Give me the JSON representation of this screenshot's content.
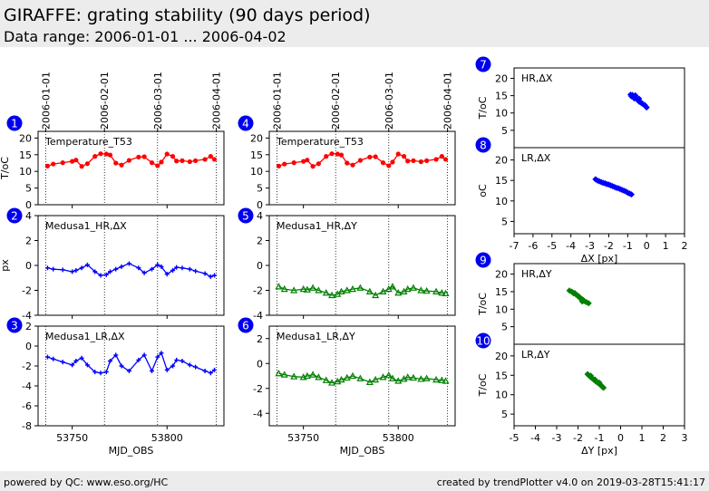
{
  "header": {
    "title": "GIRAFFE: grating stability (90 days period)",
    "subtitle": "Data range: 2006-01-01 ... 2006-04-02"
  },
  "footer": {
    "left": "powered by QC: www.eso.org/HC",
    "right": "created by trendPlotter v4.0 on 2019-03-28T15:41:17"
  },
  "colors": {
    "red": "#ff0000",
    "blue": "#0000ff",
    "green": "#008000",
    "badge": "#0000ee"
  },
  "chart_data": [
    {
      "id": 1,
      "type": "line",
      "label": "Temperature_T53",
      "ylabel": "T/oC",
      "ylim": [
        0,
        22
      ],
      "yticks": [
        0,
        5,
        10,
        15,
        20
      ],
      "color": "#ff0000",
      "marker": "circle",
      "x": [
        53737,
        53740,
        53745,
        53750,
        53752,
        53755,
        53758,
        53762,
        53765,
        53768,
        53770,
        53773,
        53776,
        53780,
        53785,
        53788,
        53792,
        53795,
        53797,
        53800,
        53803,
        53805,
        53808,
        53812,
        53815,
        53820,
        53823,
        53825
      ],
      "y": [
        11.6,
        12.2,
        12.6,
        13,
        13.4,
        11.5,
        12.3,
        14.5,
        15.3,
        15.2,
        14.9,
        12.5,
        11.9,
        13.3,
        14.3,
        14.4,
        12.6,
        11.7,
        12.8,
        15.2,
        14.5,
        13.1,
        13.2,
        12.9,
        13.2,
        13.6,
        14.5,
        13.6
      ]
    },
    {
      "id": 2,
      "type": "line",
      "label": "Medusa1_HR,ΔX",
      "ylabel": "px",
      "ylim": [
        -4,
        4
      ],
      "yticks": [
        -4,
        -2,
        0,
        2,
        4
      ],
      "color": "#0000ff",
      "marker": "plus",
      "x": [
        53737,
        53740,
        53745,
        53750,
        53752,
        53755,
        53758,
        53762,
        53765,
        53768,
        53770,
        53773,
        53776,
        53780,
        53785,
        53788,
        53792,
        53795,
        53797,
        53800,
        53803,
        53805,
        53808,
        53812,
        53815,
        53820,
        53823,
        53825
      ],
      "y": [
        -0.2,
        -0.3,
        -0.35,
        -0.5,
        -0.4,
        -0.2,
        0.05,
        -0.5,
        -0.8,
        -0.75,
        -0.5,
        -0.3,
        -0.1,
        0.15,
        -0.2,
        -0.6,
        -0.3,
        0.05,
        -0.1,
        -0.7,
        -0.4,
        -0.15,
        -0.2,
        -0.3,
        -0.45,
        -0.65,
        -0.9,
        -0.8
      ]
    },
    {
      "id": 3,
      "type": "line",
      "label": "Medusa1_LR,ΔX",
      "xlabel": "MJD_OBS",
      "ylim": [
        -8,
        2
      ],
      "yticks": [
        -8,
        -6,
        -4,
        -2,
        0,
        2
      ],
      "xticks": [
        53750,
        53800
      ],
      "color": "#0000ff",
      "marker": "plus",
      "x": [
        53737,
        53740,
        53745,
        53750,
        53752,
        53755,
        53758,
        53762,
        53765,
        53768,
        53770,
        53773,
        53776,
        53780,
        53785,
        53788,
        53792,
        53795,
        53797,
        53800,
        53803,
        53805,
        53808,
        53812,
        53815,
        53820,
        53823,
        53825
      ],
      "y": [
        -1.1,
        -1.3,
        -1.6,
        -1.9,
        -1.5,
        -1.2,
        -1.9,
        -2.6,
        -2.7,
        -2.6,
        -1.5,
        -0.9,
        -2,
        -2.5,
        -1.4,
        -0.9,
        -2.5,
        -1.1,
        -0.7,
        -2.4,
        -2,
        -1.4,
        -1.5,
        -1.9,
        -2.1,
        -2.5,
        -2.7,
        -2.4
      ]
    },
    {
      "id": 4,
      "type": "line",
      "label": "Temperature_T53",
      "ylim": [
        0,
        22
      ],
      "yticks": [
        0,
        5,
        10,
        15,
        20
      ],
      "color": "#ff0000",
      "marker": "circle",
      "x": [
        53737,
        53740,
        53745,
        53750,
        53752,
        53755,
        53758,
        53762,
        53765,
        53768,
        53770,
        53773,
        53776,
        53780,
        53785,
        53788,
        53792,
        53795,
        53797,
        53800,
        53803,
        53805,
        53808,
        53812,
        53815,
        53820,
        53823,
        53825
      ],
      "y": [
        11.6,
        12.2,
        12.6,
        13,
        13.4,
        11.5,
        12.3,
        14.5,
        15.3,
        15.2,
        14.9,
        12.5,
        11.9,
        13.3,
        14.3,
        14.4,
        12.6,
        11.7,
        12.8,
        15.2,
        14.5,
        13.1,
        13.2,
        12.9,
        13.2,
        13.6,
        14.5,
        13.6
      ]
    },
    {
      "id": 5,
      "type": "line",
      "label": "Medusa1_HR,ΔY",
      "ylim": [
        -4,
        4
      ],
      "yticks": [
        -4,
        -2,
        0,
        2,
        4
      ],
      "color": "#008000",
      "marker": "triangle",
      "x": [
        53737,
        53740,
        53745,
        53750,
        53752,
        53755,
        53758,
        53762,
        53765,
        53768,
        53770,
        53773,
        53776,
        53780,
        53785,
        53788,
        53792,
        53795,
        53797,
        53800,
        53803,
        53805,
        53808,
        53812,
        53815,
        53820,
        53823,
        53825
      ],
      "y": [
        -1.7,
        -1.9,
        -2,
        -1.9,
        -1.95,
        -1.8,
        -2,
        -2.2,
        -2.4,
        -2.3,
        -2.1,
        -2,
        -1.9,
        -1.8,
        -2.1,
        -2.4,
        -2.1,
        -1.9,
        -1.7,
        -2.2,
        -2.1,
        -1.9,
        -1.8,
        -2,
        -2.05,
        -2.1,
        -2.2,
        -2.25
      ]
    },
    {
      "id": 6,
      "type": "line",
      "label": "Medusa1_LR,ΔY",
      "xlabel": "MJD_OBS",
      "ylim": [
        -5,
        3
      ],
      "yticks": [
        -4,
        -2,
        0,
        2
      ],
      "xticks": [
        53750,
        53800
      ],
      "color": "#008000",
      "marker": "triangle",
      "x": [
        53737,
        53740,
        53745,
        53750,
        53752,
        53755,
        53758,
        53762,
        53765,
        53768,
        53770,
        53773,
        53776,
        53780,
        53785,
        53788,
        53792,
        53795,
        53797,
        53800,
        53803,
        53805,
        53808,
        53812,
        53815,
        53820,
        53823,
        53825
      ],
      "y": [
        -0.8,
        -0.9,
        -1.05,
        -1.1,
        -1,
        -0.9,
        -1.1,
        -1.35,
        -1.55,
        -1.45,
        -1.3,
        -1.15,
        -1,
        -1.2,
        -1.5,
        -1.3,
        -1.1,
        -0.95,
        -1.2,
        -1.4,
        -1.25,
        -1.1,
        -1.15,
        -1.25,
        -1.2,
        -1.3,
        -1.35,
        -1.4
      ]
    },
    {
      "id": 7,
      "type": "scatter",
      "label": "HR,ΔX",
      "ylabel": "T/oC",
      "ylim": [
        0,
        23
      ],
      "yticks": [
        5,
        10,
        15,
        20
      ],
      "color": "#0000ff",
      "marker": "diamond",
      "x": [
        -0.8,
        -0.75,
        -0.7,
        -0.65,
        -0.6,
        -0.55,
        -0.5,
        -0.45,
        -0.4,
        -0.35,
        -0.3,
        -0.25,
        -0.2,
        -0.1,
        -0.05,
        0,
        -0.85,
        -0.6,
        -0.4
      ],
      "y": [
        14.8,
        15.2,
        14.5,
        14.2,
        15.1,
        14.4,
        13.9,
        13.6,
        13.3,
        13.2,
        13,
        12.8,
        12.6,
        12.3,
        11.9,
        11.6,
        15.3,
        15,
        14.1
      ]
    },
    {
      "id": 8,
      "type": "scatter",
      "label": "LR,ΔX",
      "ylabel": "oC",
      "xlabel": "ΔX [px]",
      "ylim": [
        2,
        23
      ],
      "yticks": [
        5,
        10,
        15,
        20
      ],
      "xlim": [
        -7,
        2
      ],
      "xticks": [
        -7,
        -6,
        -5,
        -4,
        -3,
        -2,
        -1,
        0,
        1,
        2
      ],
      "color": "#0000ff",
      "marker": "diamond",
      "x": [
        -2.7,
        -2.6,
        -2.5,
        -2.4,
        -2.3,
        -2.2,
        -2.1,
        -2,
        -1.9,
        -1.8,
        -1.7,
        -1.6,
        -1.5,
        -1.4,
        -1.3,
        -1.2,
        -1.1,
        -1,
        -0.9,
        -0.8
      ],
      "y": [
        15.3,
        15,
        14.8,
        14.6,
        14.4,
        14.3,
        14.1,
        14,
        13.8,
        13.6,
        13.4,
        13.2,
        13.1,
        12.9,
        12.7,
        12.5,
        12.3,
        12,
        11.8,
        11.6
      ]
    },
    {
      "id": 9,
      "type": "scatter",
      "label": "HR,ΔY",
      "ylabel": "T/oC",
      "ylim": [
        0,
        23
      ],
      "yticks": [
        5,
        10,
        15,
        20
      ],
      "color": "#008000",
      "marker": "diamond",
      "x": [
        -2.4,
        -2.3,
        -2.25,
        -2.2,
        -2.1,
        -2.05,
        -2,
        -1.95,
        -1.9,
        -1.85,
        -1.8,
        -1.75,
        -1.7,
        -1.6,
        -1.5,
        -2.15,
        -1.95,
        -1.8
      ],
      "y": [
        15.3,
        15,
        14.8,
        14.5,
        14.2,
        14,
        13.8,
        13.6,
        13.2,
        13,
        12.8,
        12.6,
        12.3,
        12,
        11.7,
        14.6,
        13.4,
        12.2
      ]
    },
    {
      "id": 10,
      "type": "scatter",
      "label": "LR,ΔY",
      "ylabel": "T/oC",
      "xlabel": "ΔY [px]",
      "ylim": [
        2,
        23
      ],
      "yticks": [
        5,
        10,
        15,
        20
      ],
      "xlim": [
        -5,
        3
      ],
      "xticks": [
        -5,
        -4,
        -3,
        -2,
        -1,
        0,
        1,
        2,
        3
      ],
      "color": "#008000",
      "marker": "diamond",
      "x": [
        -1.55,
        -1.5,
        -1.45,
        -1.4,
        -1.35,
        -1.3,
        -1.25,
        -1.2,
        -1.15,
        -1.1,
        -1.05,
        -1,
        -0.95,
        -0.9,
        -0.85,
        -0.8,
        -1.4,
        -1.2,
        -1
      ],
      "y": [
        15.3,
        15,
        14.8,
        14.5,
        14.3,
        14.1,
        13.8,
        13.6,
        13.4,
        13.2,
        13,
        12.8,
        12.6,
        12.3,
        12,
        11.8,
        14.9,
        13.9,
        13.1
      ]
    }
  ],
  "date_axis": {
    "labels": [
      "2006-01-01",
      "2006-02-01",
      "2006-03-01",
      "2006-04-01"
    ],
    "mjd": [
      53736,
      53767,
      53795,
      53826
    ]
  },
  "mjd_range": [
    53732,
    53830
  ]
}
